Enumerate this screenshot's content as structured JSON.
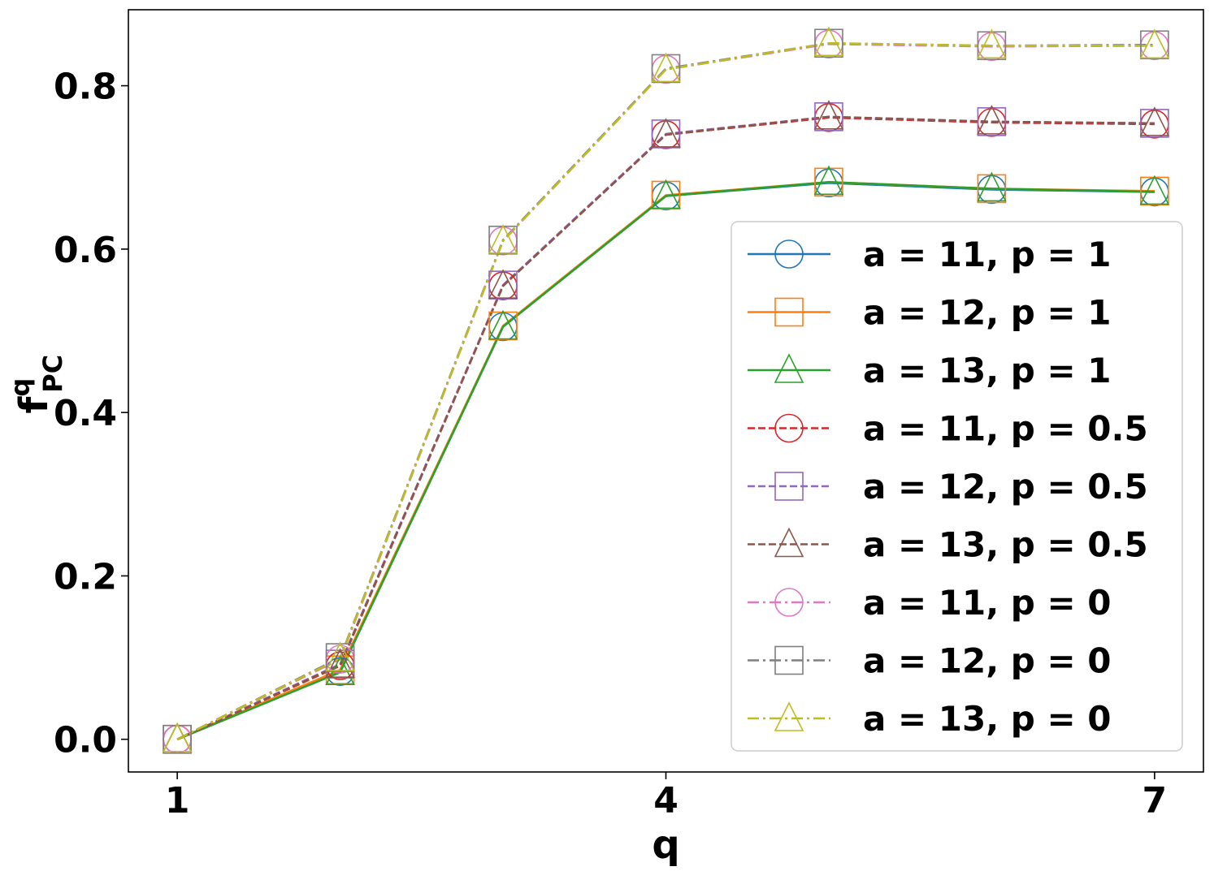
{
  "chart_data": {
    "type": "line",
    "xlabel": "q",
    "ylabel_main": "f",
    "ylabel_sup": "q",
    "ylabel_sub": "PC",
    "xlim": [
      0.7,
      7.3
    ],
    "ylim": [
      -0.04,
      0.893
    ],
    "x_ticks": [
      1,
      4,
      7
    ],
    "y_ticks": [
      0.0,
      0.2,
      0.4,
      0.6,
      0.8
    ],
    "y_tick_labels": [
      "0.0",
      "0.2",
      "0.4",
      "0.6",
      "0.8"
    ],
    "x": [
      1,
      2,
      3,
      4,
      5,
      6,
      7
    ],
    "grid": false,
    "legend_position": "lower-right",
    "series": [
      {
        "name": "a = 11,  p = 1",
        "color": "#1f77b4",
        "marker": "circle",
        "linestyle": "solid",
        "values": [
          0.0,
          0.083,
          0.505,
          0.665,
          0.681,
          0.673,
          0.67
        ]
      },
      {
        "name": "a = 12,  p = 1",
        "color": "#ff7f0e",
        "marker": "square",
        "linestyle": "solid",
        "values": [
          0.0,
          0.085,
          0.506,
          0.666,
          0.682,
          0.674,
          0.671
        ]
      },
      {
        "name": "a = 13,  p = 1",
        "color": "#2ca02c",
        "marker": "triangle",
        "linestyle": "solid",
        "values": [
          0.0,
          0.082,
          0.505,
          0.665,
          0.682,
          0.674,
          0.67
        ]
      },
      {
        "name": "a = 11,  p = 0.5",
        "color": "#d62728",
        "marker": "circle",
        "linestyle": "dashed",
        "values": [
          0.0,
          0.09,
          0.555,
          0.74,
          0.761,
          0.755,
          0.753
        ]
      },
      {
        "name": "a = 12,  p = 0.5",
        "color": "#9467bd",
        "marker": "square",
        "linestyle": "dashed",
        "values": [
          0.0,
          0.092,
          0.556,
          0.741,
          0.762,
          0.756,
          0.754
        ]
      },
      {
        "name": "a = 13,  p = 0.5",
        "color": "#8c564b",
        "marker": "triangle",
        "linestyle": "dashed",
        "values": [
          0.0,
          0.091,
          0.555,
          0.74,
          0.762,
          0.756,
          0.754
        ]
      },
      {
        "name": "a = 11,  p = 0",
        "color": "#e377c2",
        "marker": "circle",
        "linestyle": "dashdot",
        "values": [
          0.0,
          0.098,
          0.61,
          0.82,
          0.851,
          0.848,
          0.849
        ]
      },
      {
        "name": "a = 12,  p = 0",
        "color": "#7f7f7f",
        "marker": "square",
        "linestyle": "dashdot",
        "values": [
          0.0,
          0.1,
          0.611,
          0.821,
          0.852,
          0.849,
          0.85
        ]
      },
      {
        "name": "a = 13,  p = 0",
        "color": "#bcbd22",
        "marker": "triangle",
        "linestyle": "dashdot",
        "values": [
          0.0,
          0.099,
          0.61,
          0.82,
          0.852,
          0.849,
          0.849
        ]
      }
    ]
  }
}
